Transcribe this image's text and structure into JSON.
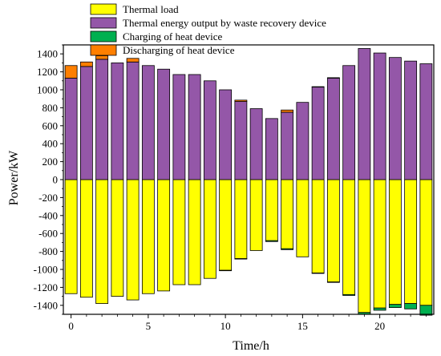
{
  "chart_data": {
    "type": "bar",
    "stacked": true,
    "xlabel": "Time/h",
    "ylabel": "Power/kW",
    "xlim": [
      -0.5,
      23.5
    ],
    "ylim": [
      -1500,
      1500
    ],
    "xticks": [
      0,
      5,
      10,
      15,
      20
    ],
    "yticks": [
      -1400,
      -1200,
      -1000,
      -800,
      -600,
      -400,
      -200,
      0,
      200,
      400,
      600,
      800,
      1000,
      1200,
      1400
    ],
    "grid": false,
    "legend_position": "top-left",
    "x": [
      0,
      1,
      2,
      3,
      4,
      5,
      6,
      7,
      8,
      9,
      10,
      11,
      12,
      13,
      14,
      15,
      16,
      17,
      18,
      19,
      20,
      21,
      22,
      23
    ],
    "series": [
      {
        "name": "Thermal load",
        "color": "#ffff00",
        "values": [
          -1270,
          -1310,
          -1380,
          -1300,
          -1340,
          -1270,
          -1240,
          -1170,
          -1170,
          -1100,
          -1010,
          -880,
          -790,
          -680,
          -770,
          -860,
          -1040,
          -1140,
          -1280,
          -1480,
          -1430,
          -1390,
          -1380,
          -1400
        ]
      },
      {
        "name": "Thermal energy output by waste recovery device",
        "color": "#9457a8",
        "values": [
          1130,
          1260,
          1340,
          1300,
          1310,
          1270,
          1230,
          1170,
          1170,
          1100,
          1000,
          870,
          790,
          680,
          750,
          860,
          1030,
          1130,
          1270,
          1460,
          1410,
          1360,
          1320,
          1290
        ]
      },
      {
        "name": "Charging of heat device",
        "color": "#00b050",
        "values": [
          0,
          0,
          0,
          0,
          0,
          0,
          0,
          0,
          0,
          0,
          -5,
          -5,
          0,
          -10,
          -10,
          0,
          -5,
          -5,
          -10,
          -20,
          -25,
          -35,
          -60,
          -110
        ]
      },
      {
        "name": "Discharging of heat device",
        "color": "#ff7f00",
        "values": [
          140,
          50,
          40,
          0,
          40,
          0,
          0,
          0,
          0,
          0,
          0,
          15,
          0,
          0,
          25,
          0,
          5,
          5,
          0,
          0,
          0,
          0,
          0,
          0
        ]
      }
    ]
  }
}
